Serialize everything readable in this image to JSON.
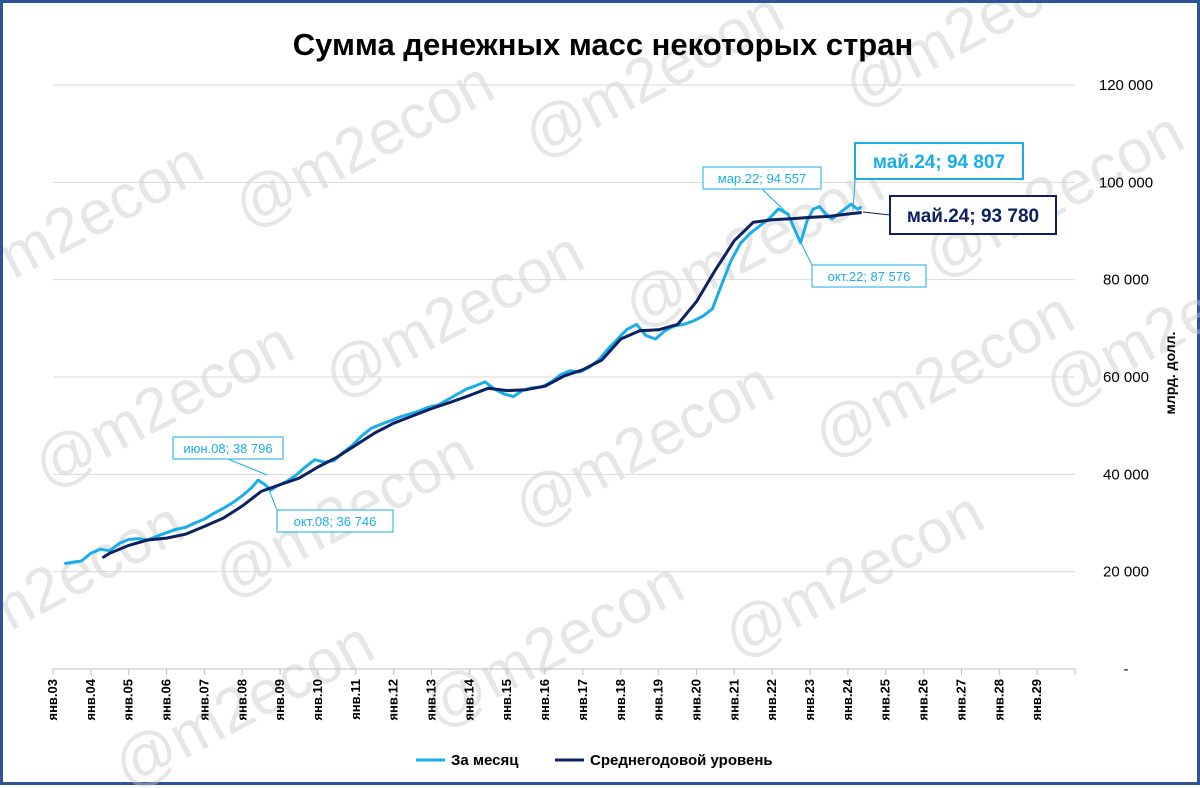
{
  "watermark": "@m2econ",
  "chart_data": {
    "type": "line",
    "title": "Сумма денежных масс некоторых стран",
    "ylabel": "млрд. долл.",
    "ylim": [
      0,
      120000
    ],
    "y_ticks": [
      0,
      20000,
      40000,
      60000,
      80000,
      100000,
      120000
    ],
    "y_tick_labels": [
      "-",
      "20 000",
      "40 000",
      "60 000",
      "80 000",
      "100 000",
      "120 000"
    ],
    "x_tick_labels": [
      "янв.03",
      "янв.04",
      "янв.05",
      "янв.06",
      "янв.07",
      "янв.08",
      "янв.09",
      "янв.10",
      "янв.11",
      "янв.12",
      "янв.13",
      "янв.14",
      "янв.15",
      "янв.16",
      "янв.17",
      "янв.18",
      "янв.19",
      "янв.20",
      "янв.21",
      "янв.22",
      "янв.23",
      "янв.24",
      "янв.25",
      "янв.26",
      "янв.27",
      "янв.28",
      "янв.29"
    ],
    "grid": true,
    "legend_position": "bottom",
    "colors": {
      "monthly": "#1aaee8",
      "average": "#0d2060",
      "axis": "#bfbfbf"
    },
    "series": [
      {
        "name": "За месяц",
        "x": [
          "2003-05",
          "2003-10",
          "2004-01",
          "2004-04",
          "2004-07",
          "2004-10",
          "2005-01",
          "2005-04",
          "2005-07",
          "2005-10",
          "2006-01",
          "2006-04",
          "2006-07",
          "2006-10",
          "2007-01",
          "2007-04",
          "2007-07",
          "2007-10",
          "2008-01",
          "2008-04",
          "2008-06",
          "2008-08",
          "2008-10",
          "2008-12",
          "2009-03",
          "2009-06",
          "2009-09",
          "2009-12",
          "2010-03",
          "2010-06",
          "2010-09",
          "2010-12",
          "2011-03",
          "2011-06",
          "2011-09",
          "2011-12",
          "2012-03",
          "2012-06",
          "2012-09",
          "2012-12",
          "2013-03",
          "2013-06",
          "2013-09",
          "2013-12",
          "2014-03",
          "2014-06",
          "2014-09",
          "2014-12",
          "2015-03",
          "2015-06",
          "2015-09",
          "2015-12",
          "2016-03",
          "2016-06",
          "2016-09",
          "2016-12",
          "2017-03",
          "2017-06",
          "2017-09",
          "2017-12",
          "2018-03",
          "2018-06",
          "2018-09",
          "2018-12",
          "2019-03",
          "2019-06",
          "2019-09",
          "2019-12",
          "2020-03",
          "2020-06",
          "2020-09",
          "2020-12",
          "2021-03",
          "2021-06",
          "2021-09",
          "2021-12",
          "2022-03",
          "2022-06",
          "2022-08",
          "2022-10",
          "2022-12",
          "2023-02",
          "2023-04",
          "2023-06",
          "2023-08",
          "2023-10",
          "2023-12",
          "2024-02",
          "2024-04",
          "2024-05"
        ],
        "values": [
          21700,
          22200,
          23800,
          24600,
          24300,
          25800,
          26600,
          26800,
          26500,
          27300,
          28000,
          28700,
          29100,
          30000,
          30800,
          32000,
          33000,
          34200,
          35600,
          37300,
          38796,
          38000,
          36746,
          37600,
          38500,
          39800,
          41500,
          43000,
          42500,
          42800,
          44500,
          46000,
          48000,
          49500,
          50300,
          51000,
          51800,
          52400,
          53000,
          53800,
          54200,
          55300,
          56400,
          57500,
          58200,
          59000,
          57500,
          56500,
          56000,
          57300,
          57800,
          58000,
          59000,
          60500,
          61300,
          61000,
          62000,
          63500,
          65800,
          67800,
          69800,
          70800,
          68500,
          67800,
          69500,
          70500,
          70800,
          71500,
          72500,
          74000,
          79000,
          84000,
          87500,
          89500,
          91000,
          92500,
          94557,
          93500,
          90500,
          87576,
          92000,
          94500,
          95000,
          93500,
          92500,
          93500,
          94500,
          95500,
          94500,
          94807
        ]
      },
      {
        "name": "Среднегодовой уровень",
        "x": [
          "2004-05",
          "2004-07",
          "2005-01",
          "2005-07",
          "2006-01",
          "2006-07",
          "2007-01",
          "2007-07",
          "2008-01",
          "2008-07",
          "2009-01",
          "2009-07",
          "2010-01",
          "2010-07",
          "2011-01",
          "2011-07",
          "2012-01",
          "2012-07",
          "2013-01",
          "2013-07",
          "2014-01",
          "2014-07",
          "2015-01",
          "2015-07",
          "2016-01",
          "2016-07",
          "2017-01",
          "2017-07",
          "2018-01",
          "2018-07",
          "2019-01",
          "2019-07",
          "2020-01",
          "2020-07",
          "2021-01",
          "2021-07",
          "2022-01",
          "2022-07",
          "2023-01",
          "2023-07",
          "2024-01",
          "2024-05"
        ],
        "values": [
          23000,
          23800,
          25400,
          26500,
          26900,
          27700,
          29300,
          31000,
          33500,
          36500,
          37900,
          39200,
          41500,
          43500,
          46000,
          48500,
          50500,
          52000,
          53500,
          54800,
          56200,
          57700,
          57200,
          57400,
          58100,
          60200,
          61500,
          63500,
          67800,
          69500,
          69700,
          70800,
          75500,
          82000,
          88000,
          91800,
          92300,
          92500,
          92800,
          93000,
          93500,
          93780
        ]
      }
    ],
    "annotations": [
      {
        "series": "За месяц",
        "label": "июн.08;  38 796",
        "size": "small"
      },
      {
        "series": "За месяц",
        "label": "окт.08;  36 746",
        "size": "small"
      },
      {
        "series": "За месяц",
        "label": "мар.22;  94 557",
        "size": "small"
      },
      {
        "series": "За месяц",
        "label": "окт.22;  87 576",
        "size": "small"
      },
      {
        "series": "За месяц",
        "label": "май.24;  94 807",
        "size": "big"
      },
      {
        "series": "Среднегодовой уровень",
        "label": "май.24;  93 780",
        "size": "big"
      }
    ]
  }
}
